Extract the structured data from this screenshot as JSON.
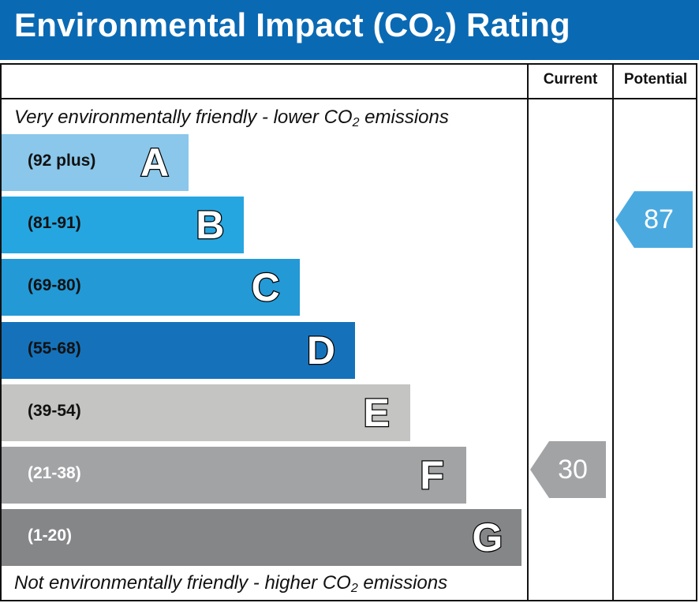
{
  "header": {
    "title_prefix": "Environmental Impact (CO",
    "title_sub": "2",
    "title_suffix": ") Rating"
  },
  "columns": {
    "current": "Current",
    "potential": "Potential"
  },
  "notes": {
    "top_prefix": "Very environmentally friendly - lower CO",
    "top_sub": "2",
    "top_suffix": " emissions",
    "bottom_prefix": "Not environmentally friendly - higher CO",
    "bottom_sub": "2",
    "bottom_suffix": " emissions"
  },
  "chart_data": {
    "type": "bar",
    "bands": [
      {
        "letter": "A",
        "range": "(92 plus)",
        "color": "#8ac7ea",
        "text_color": "#111111"
      },
      {
        "letter": "B",
        "range": "(81-91)",
        "color": "#26a6e0",
        "text_color": "#111111"
      },
      {
        "letter": "C",
        "range": "(69-80)",
        "color": "#2399d6",
        "text_color": "#111111"
      },
      {
        "letter": "D",
        "range": "(55-68)",
        "color": "#1572ba",
        "text_color": "#111111"
      },
      {
        "letter": "E",
        "range": "(39-54)",
        "color": "#c4c4c2",
        "text_color": "#111111"
      },
      {
        "letter": "F",
        "range": "(21-38)",
        "color": "#a2a3a5",
        "text_color": "#ffffff"
      },
      {
        "letter": "G",
        "range": "(1-20)",
        "color": "#858688",
        "text_color": "#ffffff"
      }
    ],
    "current": {
      "value": 30,
      "band": "F",
      "color": "#a2a3a5"
    },
    "potential": {
      "value": 87,
      "band": "B",
      "color": "#4aaae0"
    }
  }
}
